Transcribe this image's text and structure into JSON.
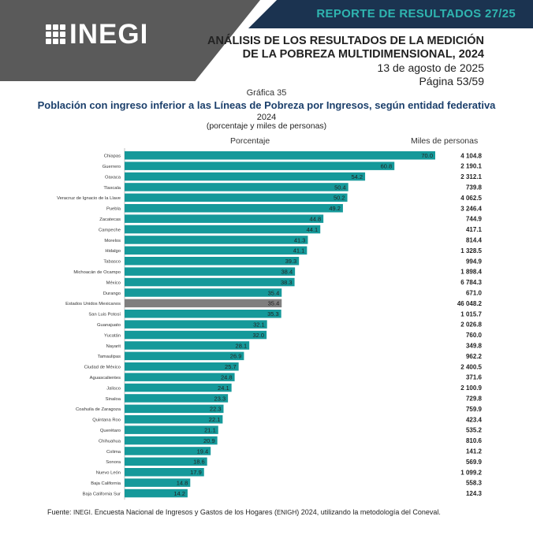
{
  "header": {
    "report_title": "REPORTE DE RESULTADOS 27/25",
    "logo_text": "INEGI",
    "doc_title_line1": "ANÁLISIS DE LOS RESULTADOS DE LA MEDICIÓN",
    "doc_title_line2": "DE LA POBREZA MULTIDIMENSIONAL, 2024",
    "date": "13 de agosto de 2025",
    "page": "Página 53/59"
  },
  "chart_header": {
    "number": "Gráfica 35",
    "title": "Población con ingreso inferior a las Líneas de Pobreza por Ingresos, según entidad federativa",
    "year": "2024",
    "subtitle": "(porcentaje y miles de personas)",
    "col_percent": "Porcentaje",
    "col_thousands": "Miles de personas"
  },
  "colors": {
    "bar": "#15999a",
    "highlight": "#7f7f7f",
    "navy": "#1b3350",
    "teal_text": "#2fb5b0"
  },
  "chart_data": {
    "type": "bar",
    "orientation": "horizontal",
    "xlim": [
      0,
      70
    ],
    "categories": [
      "Chiapas",
      "Guerrero",
      "Oaxaca",
      "Tlaxcala",
      "Veracruz de Ignacio de la Llave",
      "Puebla",
      "Zacatecas",
      "Campeche",
      "Morelos",
      "Hidalgo",
      "Tabasco",
      "Michoacán de Ocampo",
      "México",
      "Durango",
      "Estados Unidos Mexicanos",
      "San Luis Potosí",
      "Guanajuato",
      "Yucatán",
      "Nayarit",
      "Tamaulipas",
      "Ciudad de México",
      "Aguascalientes",
      "Jalisco",
      "Sinaloa",
      "Coahuila de Zaragoza",
      "Quintana Roo",
      "Querétaro",
      "Chihuahua",
      "Colima",
      "Sonora",
      "Nuevo León",
      "Baja California",
      "Baja California Sur"
    ],
    "values": [
      70.0,
      60.8,
      54.2,
      50.4,
      50.2,
      49.2,
      44.8,
      44.1,
      41.3,
      41.1,
      39.3,
      38.4,
      38.3,
      35.4,
      35.4,
      35.3,
      32.1,
      32.0,
      28.1,
      26.9,
      25.7,
      24.8,
      24.1,
      23.3,
      22.3,
      22.1,
      21.1,
      20.9,
      19.4,
      18.6,
      17.9,
      14.8,
      14.2
    ],
    "value_labels": [
      "70.0",
      "60.8",
      "54.2",
      "50.4",
      "50.2",
      "49.2",
      "44.8",
      "44.1",
      "41.3",
      "41.1",
      "39.3",
      "38.4",
      "38.3",
      "35.4",
      "35.4",
      "35.3",
      "32.1",
      "32.0",
      "28.1",
      "26.9",
      "25.7",
      "24.8",
      "24.1",
      "23.3",
      "22.3",
      "22.1",
      "21.1",
      "20.9",
      "19.4",
      "18.6",
      "17.9",
      "14.8",
      "14.2"
    ],
    "thousands": [
      "4 104.8",
      "2 190.1",
      "2 312.1",
      "739.8",
      "4 062.5",
      "3 246.4",
      "744.9",
      "417.1",
      "814.4",
      "1 328.5",
      "994.9",
      "1 898.4",
      "6 784.3",
      "671.0",
      "46 048.2",
      "1 015.7",
      "2 026.8",
      "760.0",
      "349.8",
      "962.2",
      "2 400.5",
      "371.6",
      "2 100.9",
      "729.8",
      "759.9",
      "423.4",
      "535.2",
      "810.6",
      "141.2",
      "569.9",
      "1 099.2",
      "558.3",
      "124.3"
    ],
    "highlight_index": 14
  },
  "footer": {
    "label": "Fuente: ",
    "inegi": "INEGI",
    "text": ". Encuesta Nacional de Ingresos y Gastos de los Hogares (",
    "enigh": "ENIGH",
    "text2": ") 2024, utilizando la metodología del Coneval."
  }
}
